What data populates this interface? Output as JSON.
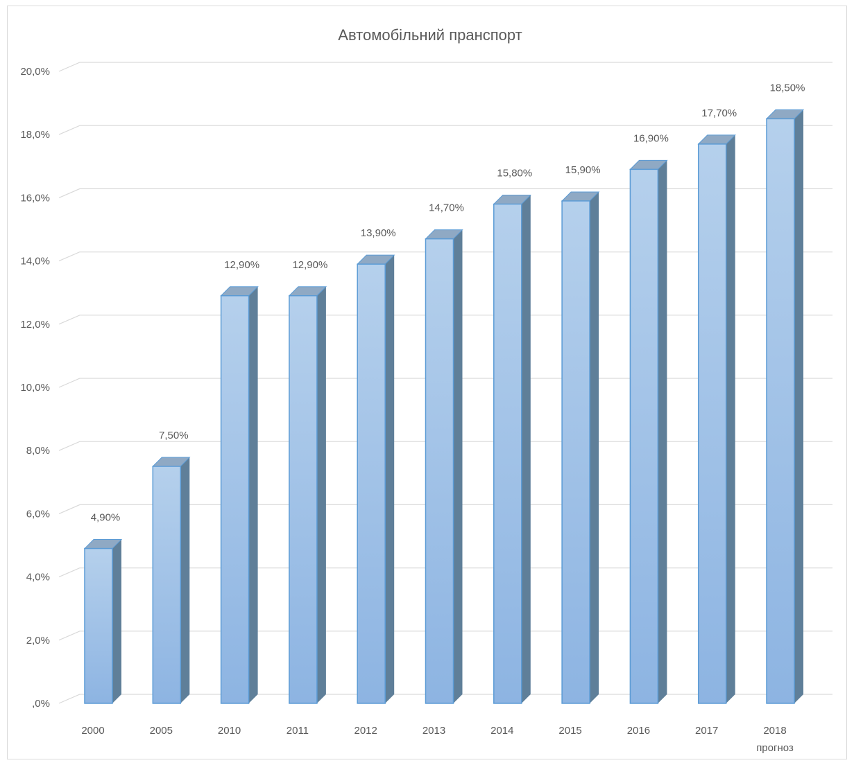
{
  "chart_data": {
    "type": "bar",
    "title": "Автомобільний пранспорт",
    "categories": [
      "2000",
      "2005",
      "2010",
      "2011",
      "2012",
      "2013",
      "2014",
      "2015",
      "2016",
      "2017",
      "2018"
    ],
    "category_sublabels": [
      "",
      "",
      "",
      "",
      "",
      "",
      "",
      "",
      "",
      "",
      "прогноз"
    ],
    "series": [
      {
        "values": [
          4.9,
          7.5,
          12.9,
          12.9,
          13.9,
          14.7,
          15.8,
          15.9,
          16.9,
          17.7,
          18.5
        ]
      }
    ],
    "data_labels": [
      "4,90%",
      "7,50%",
      "12,90%",
      "12,90%",
      "13,90%",
      "14,70%",
      "15,80%",
      "15,90%",
      "16,90%",
      "17,70%",
      "18,50%"
    ],
    "y_ticks": [
      ",0%",
      "2,0%",
      "4,0%",
      "6,0%",
      "8,0%",
      "10,0%",
      "12,0%",
      "14,0%",
      "16,0%",
      "18,0%",
      "20,0%"
    ],
    "ylim": [
      0,
      20
    ],
    "grid": true,
    "legend": "none",
    "style": "3d-column",
    "colors": {
      "bar_front": "#9dc3e6",
      "bar_side": "#5f7f99",
      "bar_top": "#8fa9c4",
      "bar_edge": "#5b9bd5",
      "grid": "#d9d9d9",
      "text": "#595959"
    }
  }
}
